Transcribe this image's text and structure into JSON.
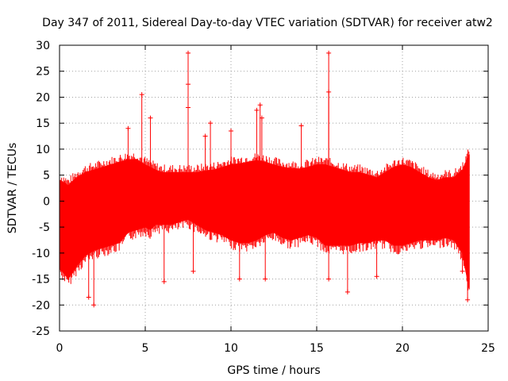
{
  "chart_data": {
    "type": "scatter",
    "title": "Day 347 of 2011, Sidereal Day-to-day VTEC variation (SDTVAR) for receiver atw2",
    "xlabel": "GPS time / hours",
    "ylabel": "SDTVAR / TECUs",
    "xlim": [
      0,
      25
    ],
    "ylim": [
      -25,
      30
    ],
    "xticks": [
      0,
      5,
      10,
      15,
      20,
      25
    ],
    "yticks": [
      -25,
      -20,
      -15,
      -10,
      -5,
      0,
      5,
      10,
      15,
      20,
      25,
      30
    ],
    "grid": true,
    "series_color": "#ff0000",
    "band": {
      "x": [
        0.0,
        0.3,
        0.5,
        1.0,
        1.5,
        2.0,
        2.5,
        3.0,
        3.5,
        4.0,
        4.5,
        5.0,
        5.3,
        5.6,
        6.0,
        6.5,
        7.0,
        7.5,
        8.0,
        8.5,
        9.0,
        9.5,
        10.0,
        10.5,
        11.0,
        11.5,
        12.0,
        12.5,
        13.0,
        13.5,
        14.0,
        14.5,
        15.0,
        15.5,
        16.0,
        16.5,
        17.0,
        17.5,
        18.0,
        18.5,
        19.0,
        19.5,
        20.0,
        20.5,
        21.0,
        21.5,
        22.0,
        22.5,
        23.0,
        23.5,
        23.9
      ],
      "upper": [
        4.0,
        3.5,
        3.0,
        4.5,
        5.5,
        6.0,
        6.5,
        7.0,
        7.5,
        8.0,
        8.0,
        7.0,
        6.5,
        6.0,
        5.5,
        5.5,
        5.5,
        5.5,
        5.5,
        5.8,
        6.0,
        6.5,
        7.0,
        7.2,
        7.5,
        7.8,
        7.5,
        7.0,
        6.5,
        6.3,
        6.2,
        6.5,
        7.0,
        7.0,
        6.5,
        6.0,
        5.5,
        5.5,
        5.0,
        4.5,
        5.5,
        6.5,
        7.0,
        6.5,
        5.5,
        4.5,
        4.0,
        4.5,
        4.5,
        6.0,
        9.0
      ],
      "lower": [
        -13.0,
        -14.0,
        -15.0,
        -12.5,
        -10.5,
        -9.5,
        -9.0,
        -8.5,
        -8.0,
        -6.0,
        -5.5,
        -5.0,
        -5.5,
        -4.5,
        -4.5,
        -4.5,
        -4.0,
        -3.5,
        -4.5,
        -5.5,
        -6.0,
        -6.5,
        -7.5,
        -8.0,
        -8.0,
        -7.5,
        -6.5,
        -6.0,
        -7.0,
        -7.5,
        -7.0,
        -6.5,
        -7.0,
        -8.5,
        -8.5,
        -8.5,
        -8.5,
        -8.0,
        -8.0,
        -7.5,
        -7.5,
        -8.5,
        -8.5,
        -8.0,
        -7.5,
        -7.5,
        -7.5,
        -7.0,
        -7.5,
        -10.0,
        -17.0
      ]
    },
    "spikes": [
      {
        "x": 1.7,
        "y": -18.5
      },
      {
        "x": 2.0,
        "y": -20.0
      },
      {
        "x": 4.0,
        "y": 14.0
      },
      {
        "x": 4.8,
        "y": 20.5
      },
      {
        "x": 5.3,
        "y": 16.0
      },
      {
        "x": 6.1,
        "y": -15.5
      },
      {
        "x": 7.5,
        "y": 28.5
      },
      {
        "x": 7.5,
        "y": 22.5
      },
      {
        "x": 7.5,
        "y": 18.0
      },
      {
        "x": 7.8,
        "y": -13.5
      },
      {
        "x": 8.5,
        "y": 12.5
      },
      {
        "x": 8.8,
        "y": 15.0
      },
      {
        "x": 10.0,
        "y": 13.5
      },
      {
        "x": 10.5,
        "y": -15.0
      },
      {
        "x": 11.5,
        "y": 17.5
      },
      {
        "x": 11.7,
        "y": 18.5
      },
      {
        "x": 11.8,
        "y": 16.0
      },
      {
        "x": 12.0,
        "y": -15.0
      },
      {
        "x": 14.1,
        "y": 14.5
      },
      {
        "x": 15.7,
        "y": 28.5
      },
      {
        "x": 15.7,
        "y": 21.0
      },
      {
        "x": 15.7,
        "y": -15.0
      },
      {
        "x": 16.8,
        "y": -17.5
      },
      {
        "x": 18.5,
        "y": -14.5
      },
      {
        "x": 23.5,
        "y": -13.5
      },
      {
        "x": 23.8,
        "y": -19.0
      }
    ]
  }
}
